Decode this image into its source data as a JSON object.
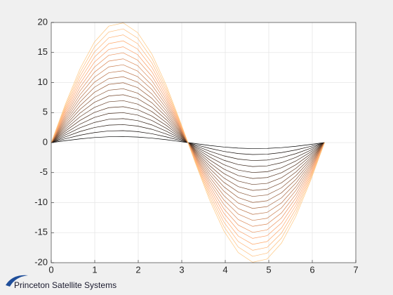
{
  "chart_data": {
    "type": "line",
    "x": [
      0,
      0.3307,
      0.6614,
      0.9921,
      1.3228,
      1.6535,
      1.9842,
      2.3149,
      2.6456,
      2.9762,
      3.3069,
      3.6376,
      3.9683,
      4.299,
      4.6297,
      4.9604,
      5.2911,
      5.6218,
      5.9525,
      6.2832
    ],
    "series": [
      {
        "values": [
          0,
          0.32,
          0.61,
          0.84,
          0.97,
          1,
          0.92,
          0.74,
          0.48,
          0.16,
          -0.16,
          -0.48,
          -0.74,
          -0.92,
          -1,
          -0.97,
          -0.84,
          -0.61,
          -0.32,
          0
        ]
      },
      {
        "values": [
          0,
          0.65,
          1.23,
          1.67,
          1.94,
          1.99,
          1.83,
          1.47,
          0.95,
          0.33,
          -0.33,
          -0.95,
          -1.47,
          -1.83,
          -1.99,
          -1.94,
          -1.67,
          -1.23,
          -0.65,
          0
        ]
      },
      {
        "values": [
          0,
          0.97,
          1.84,
          2.51,
          2.91,
          2.99,
          2.75,
          2.21,
          1.43,
          0.49,
          -0.49,
          -1.43,
          -2.21,
          -2.75,
          -2.99,
          -2.91,
          -2.51,
          -1.84,
          -0.97,
          0
        ]
      },
      {
        "values": [
          0,
          1.3,
          2.46,
          3.35,
          3.88,
          3.99,
          3.66,
          2.94,
          1.9,
          0.66,
          -0.66,
          -1.9,
          -2.94,
          -3.66,
          -3.99,
          -3.88,
          -3.35,
          -2.46,
          -1.3,
          0
        ]
      },
      {
        "values": [
          0,
          1.62,
          3.07,
          4.19,
          4.85,
          4.98,
          4.58,
          3.68,
          2.38,
          0.82,
          -0.82,
          -2.38,
          -3.68,
          -4.58,
          -4.98,
          -4.85,
          -4.19,
          -3.07,
          -1.62,
          0
        ]
      },
      {
        "values": [
          0,
          1.95,
          3.69,
          5.02,
          5.82,
          5.98,
          5.49,
          4.41,
          2.86,
          0.99,
          -0.99,
          -2.86,
          -4.41,
          -5.49,
          -5.98,
          -5.82,
          -5.02,
          -3.69,
          -1.95,
          0
        ]
      },
      {
        "values": [
          0,
          2.27,
          4.3,
          5.86,
          6.79,
          6.98,
          6.41,
          5.15,
          3.33,
          1.15,
          -1.15,
          -3.33,
          -5.15,
          -6.41,
          -6.98,
          -6.79,
          -5.86,
          -4.3,
          -2.27,
          0
        ]
      },
      {
        "values": [
          0,
          2.6,
          4.91,
          6.7,
          7.76,
          7.97,
          7.33,
          5.89,
          3.81,
          1.32,
          -1.32,
          -3.81,
          -5.89,
          -7.33,
          -7.97,
          -7.76,
          -6.7,
          -4.91,
          -2.6,
          0
        ]
      },
      {
        "values": [
          0,
          2.92,
          5.53,
          7.53,
          8.72,
          8.97,
          8.24,
          6.62,
          4.28,
          1.48,
          -1.48,
          -4.28,
          -6.62,
          -8.24,
          -8.97,
          -8.72,
          -7.53,
          -5.53,
          -2.92,
          0
        ]
      },
      {
        "values": [
          0,
          3.25,
          6.14,
          8.37,
          9.69,
          9.97,
          9.16,
          7.36,
          4.76,
          1.65,
          -1.65,
          -4.76,
          -7.36,
          -9.16,
          -9.97,
          -9.69,
          -8.37,
          -6.14,
          -3.25,
          0
        ]
      },
      {
        "values": [
          0,
          3.57,
          6.76,
          9.21,
          10.66,
          10.96,
          10.07,
          8.09,
          5.23,
          1.81,
          -1.81,
          -5.23,
          -8.09,
          -10.07,
          -10.96,
          -10.66,
          -9.21,
          -6.76,
          -3.57,
          0
        ]
      },
      {
        "values": [
          0,
          3.9,
          7.37,
          10.05,
          11.63,
          11.96,
          10.99,
          8.83,
          5.71,
          1.98,
          -1.98,
          -5.71,
          -8.83,
          -10.99,
          -11.96,
          -11.63,
          -10.05,
          -7.37,
          -3.9,
          0
        ]
      },
      {
        "values": [
          0,
          4.22,
          7.98,
          10.88,
          12.6,
          12.96,
          11.91,
          9.56,
          6.19,
          2.14,
          -2.14,
          -6.19,
          -9.56,
          -11.91,
          -12.96,
          -12.6,
          -10.88,
          -7.98,
          -4.22,
          0
        ]
      },
      {
        "values": [
          0,
          4.55,
          8.6,
          11.72,
          13.57,
          13.95,
          12.82,
          10.3,
          6.66,
          2.3,
          -2.3,
          -6.66,
          -10.3,
          -12.82,
          -13.95,
          -13.57,
          -11.72,
          -8.6,
          -4.55,
          0
        ]
      },
      {
        "values": [
          0,
          4.87,
          9.21,
          12.56,
          14.54,
          14.95,
          13.74,
          11.04,
          7.14,
          2.47,
          -2.47,
          -7.14,
          -11.04,
          -13.74,
          -14.95,
          -14.54,
          -12.56,
          -9.21,
          -4.87,
          0
        ]
      },
      {
        "values": [
          0,
          5.2,
          9.83,
          13.4,
          15.51,
          15.95,
          14.65,
          11.77,
          7.61,
          2.63,
          -2.63,
          -7.61,
          -11.77,
          -14.65,
          -15.95,
          -15.51,
          -13.4,
          -9.83,
          -5.2,
          0
        ]
      },
      {
        "values": [
          0,
          5.52,
          10.44,
          14.23,
          16.48,
          16.94,
          15.57,
          12.51,
          8.09,
          2.8,
          -2.8,
          -8.09,
          -12.51,
          -15.57,
          -16.94,
          -16.48,
          -14.23,
          -10.44,
          -5.52,
          0
        ]
      },
      {
        "values": [
          0,
          5.84,
          11.06,
          15.07,
          17.45,
          17.94,
          16.48,
          13.24,
          8.57,
          2.96,
          -2.96,
          -8.57,
          -13.24,
          -16.48,
          -17.94,
          -17.45,
          -15.07,
          -11.06,
          -5.84,
          0
        ]
      },
      {
        "values": [
          0,
          6.17,
          11.67,
          15.91,
          18.42,
          18.94,
          17.4,
          13.98,
          9.04,
          3.13,
          -3.13,
          -9.04,
          -13.98,
          -17.4,
          -18.94,
          -18.42,
          -15.91,
          -11.67,
          -6.17,
          0
        ]
      },
      {
        "values": [
          0,
          6.49,
          12.28,
          16.74,
          19.39,
          19.93,
          18.32,
          14.71,
          9.52,
          3.29,
          -3.29,
          -9.52,
          -14.71,
          -18.32,
          -19.93,
          -19.39,
          -16.74,
          -12.28,
          -6.49,
          0
        ]
      }
    ],
    "colormap": "copper",
    "xlim": [
      0,
      7
    ],
    "xticks": [
      0,
      1,
      2,
      3,
      4,
      5,
      6,
      7
    ],
    "ylim": [
      -20,
      20
    ],
    "yticks": [
      -20,
      -15,
      -10,
      -5,
      0,
      5,
      10,
      15,
      20
    ],
    "grid": true
  },
  "logo": "Princeton Satellite Systems"
}
